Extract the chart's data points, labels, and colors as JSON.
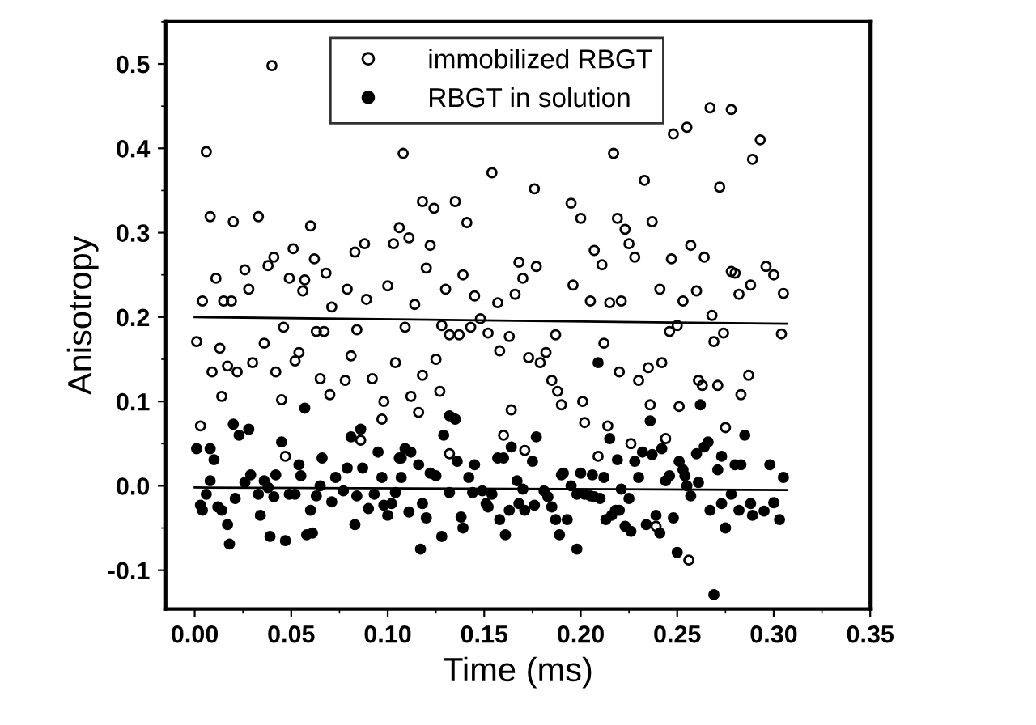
{
  "chart_data": {
    "type": "scatter",
    "xlabel": "Time (ms)",
    "ylabel": "Anisotropy",
    "xlim": [
      -0.015,
      0.35
    ],
    "ylim": [
      -0.146,
      0.55
    ],
    "xticks": [
      {
        "value": 0,
        "label": "0.00"
      },
      {
        "value": 0.05,
        "label": "0.05"
      },
      {
        "value": 0.1,
        "label": "0.10"
      },
      {
        "value": 0.15,
        "label": "0.15"
      },
      {
        "value": 0.2,
        "label": "0.20"
      },
      {
        "value": 0.25,
        "label": "0.25"
      },
      {
        "value": 0.3,
        "label": "0.30"
      },
      {
        "value": 0.35,
        "label": "0.35"
      }
    ],
    "yticks": [
      {
        "value": -0.1,
        "label": "-0.1"
      },
      {
        "value": 0,
        "label": "0.0"
      },
      {
        "value": 0.1,
        "label": "0.1"
      },
      {
        "value": 0.2,
        "label": "0.2"
      },
      {
        "value": 0.3,
        "label": "0.3"
      },
      {
        "value": 0.4,
        "label": "0.4"
      },
      {
        "value": 0.5,
        "label": "0.5"
      }
    ],
    "grid": false,
    "legend": "top",
    "marker": "circle",
    "series": [
      {
        "name": "immobilized RBGT",
        "color": "#000000",
        "x": [
          0.04,
          0.006,
          0.008,
          0.02,
          0.033,
          0.06,
          0.011,
          0.026,
          0.028,
          0.038,
          0.041,
          0.051,
          0.049,
          0.057,
          0.056,
          0.062,
          0.068,
          0.071,
          0.079,
          0.083,
          0.088,
          0.089,
          0.103,
          0.106,
          0.1,
          0.004,
          0.015,
          0.019,
          0.108,
          0.154,
          0.176,
          0.217,
          0.233,
          0.248,
          0.255,
          0.267,
          0.278,
          0.272,
          0.289,
          0.118,
          0.124,
          0.135,
          0.141,
          0.111,
          0.122,
          0.12,
          0.139,
          0.13,
          0.114,
          0.195,
          0.2,
          0.219,
          0.223,
          0.225,
          0.228,
          0.207,
          0.211,
          0.237,
          0.247,
          0.257,
          0.264,
          0.168,
          0.17,
          0.177,
          0.196,
          0.241,
          0.253,
          0.26,
          0.278,
          0.28,
          0.288,
          0.282,
          0.145,
          0.157,
          0.166,
          0.215,
          0.221,
          0.205,
          0.001,
          0.013,
          0.009,
          0.017,
          0.022,
          0.014,
          0.03,
          0.036,
          0.046,
          0.042,
          0.045,
          0.052,
          0.054,
          0.065,
          0.07,
          0.063,
          0.067,
          0.078,
          0.081,
          0.092,
          0.084,
          0.098,
          0.097,
          0.003,
          0.047,
          0.086,
          0.104,
          0.109,
          0.112,
          0.116,
          0.118,
          0.125,
          0.127,
          0.132,
          0.128,
          0.132,
          0.137,
          0.143,
          0.148,
          0.152,
          0.158,
          0.163,
          0.164,
          0.16,
          0.171,
          0.173,
          0.179,
          0.182,
          0.185,
          0.188,
          0.19,
          0.201,
          0.202,
          0.187,
          0.212,
          0.209,
          0.214,
          0.22,
          0.226,
          0.23,
          0.235,
          0.236,
          0.242,
          0.244,
          0.246,
          0.251,
          0.256,
          0.261,
          0.263,
          0.271,
          0.268,
          0.269,
          0.274,
          0.275,
          0.283,
          0.287,
          0.239,
          0.25,
          0.296,
          0.3,
          0.305,
          0.304,
          0.293
        ],
        "values": [
          0.498,
          0.396,
          0.319,
          0.313,
          0.319,
          0.308,
          0.246,
          0.256,
          0.233,
          0.261,
          0.271,
          0.281,
          0.246,
          0.244,
          0.231,
          0.269,
          0.252,
          0.212,
          0.233,
          0.277,
          0.287,
          0.221,
          0.287,
          0.306,
          0.237,
          0.219,
          0.219,
          0.219,
          0.394,
          0.371,
          0.352,
          0.394,
          0.362,
          0.417,
          0.425,
          0.448,
          0.446,
          0.354,
          0.387,
          0.337,
          0.329,
          0.337,
          0.312,
          0.294,
          0.285,
          0.258,
          0.25,
          0.233,
          0.215,
          0.335,
          0.317,
          0.317,
          0.304,
          0.287,
          0.271,
          0.279,
          0.262,
          0.313,
          0.269,
          0.285,
          0.271,
          0.265,
          0.246,
          0.26,
          0.238,
          0.233,
          0.219,
          0.231,
          0.254,
          0.252,
          0.238,
          0.227,
          0.225,
          0.217,
          0.227,
          0.217,
          0.219,
          0.219,
          0.171,
          0.163,
          0.135,
          0.142,
          0.135,
          0.106,
          0.146,
          0.169,
          0.188,
          0.135,
          0.102,
          0.148,
          0.158,
          0.127,
          0.108,
          0.183,
          0.183,
          0.125,
          0.154,
          0.127,
          0.185,
          0.1,
          0.079,
          0.071,
          0.035,
          0.054,
          0.146,
          0.188,
          0.106,
          0.087,
          0.131,
          0.15,
          0.112,
          0.038,
          0.19,
          0.179,
          0.179,
          0.188,
          0.198,
          0.181,
          0.16,
          0.177,
          0.09,
          0.06,
          0.042,
          0.152,
          0.146,
          0.158,
          0.125,
          0.112,
          0.096,
          0.1,
          0.075,
          0.179,
          0.169,
          0.035,
          0.071,
          0.135,
          0.05,
          0.125,
          0.14,
          0.096,
          0.146,
          0.056,
          0.183,
          0.094,
          -0.088,
          0.125,
          0.119,
          0.119,
          0.202,
          0.171,
          0.181,
          0.069,
          0.108,
          0.131,
          -0.048,
          0.19,
          0.26,
          0.25,
          0.228,
          0.18,
          0.41
        ]
      },
      {
        "name": "RBGT in solution",
        "color": "#000000",
        "x": [
          0.001,
          0.008,
          0.01,
          0.02,
          0.023,
          0.028,
          0.008,
          0.003,
          0.004,
          0.012,
          0.014,
          0.006,
          0.017,
          0.018,
          0.021,
          0.026,
          0.029,
          0.034,
          0.033,
          0.036,
          0.038,
          0.041,
          0.039,
          0.047,
          0.042,
          0.045,
          0.054,
          0.055,
          0.049,
          0.052,
          0.057,
          0.058,
          0.061,
          0.06,
          0.063,
          0.065,
          0.066,
          0.071,
          0.073,
          0.077,
          0.079,
          0.081,
          0.083,
          0.084,
          0.087,
          0.086,
          0.09,
          0.093,
          0.095,
          0.097,
          0.098,
          0.1,
          0.102,
          0.104,
          0.107,
          0.106,
          0.109,
          0.112,
          0.107,
          0.111,
          0.117,
          0.118,
          0.12,
          0.116,
          0.122,
          0.125,
          0.128,
          0.129,
          0.132,
          0.132,
          0.135,
          0.136,
          0.138,
          0.139,
          0.142,
          0.145,
          0.144,
          0.149,
          0.151,
          0.154,
          0.152,
          0.158,
          0.161,
          0.157,
          0.16,
          0.163,
          0.164,
          0.167,
          0.17,
          0.168,
          0.171,
          0.175,
          0.176,
          0.177,
          0.181,
          0.183,
          0.185,
          0.187,
          0.189,
          0.19,
          0.191,
          0.193,
          0.195,
          0.198,
          0.198,
          0.2,
          0.206,
          0.202,
          0.205,
          0.207,
          0.21,
          0.209,
          0.212,
          0.213,
          0.216,
          0.218,
          0.22,
          0.215,
          0.219,
          0.221,
          0.223,
          0.226,
          0.225,
          0.228,
          0.23,
          0.232,
          0.234,
          0.236,
          0.237,
          0.239,
          0.241,
          0.242,
          0.244,
          0.246,
          0.248,
          0.25,
          0.251,
          0.253,
          0.254,
          0.255,
          0.257,
          0.26,
          0.261,
          0.262,
          0.264,
          0.266,
          0.267,
          0.269,
          0.271,
          0.273,
          0.273,
          0.275,
          0.278,
          0.28,
          0.283,
          0.282,
          0.285,
          0.288,
          0.289,
          0.295,
          0.3,
          0.305,
          0.303,
          0.298
        ],
        "values": [
          0.044,
          0.044,
          0.031,
          0.073,
          0.06,
          0.067,
          0.006,
          -0.023,
          -0.029,
          -0.025,
          -0.029,
          -0.01,
          -0.046,
          -0.069,
          -0.015,
          0.004,
          0.013,
          -0.035,
          -0.01,
          0.006,
          -0.002,
          -0.013,
          -0.06,
          -0.065,
          0.013,
          0.052,
          0.025,
          0.012,
          -0.01,
          -0.01,
          0.092,
          -0.058,
          -0.056,
          -0.029,
          -0.012,
          0.0,
          0.033,
          -0.019,
          0.01,
          -0.006,
          0.021,
          0.058,
          -0.046,
          -0.012,
          0.021,
          0.067,
          -0.027,
          -0.01,
          0.04,
          0.01,
          -0.023,
          -0.035,
          -0.021,
          -0.008,
          0.033,
          0.033,
          0.044,
          0.04,
          0.01,
          -0.031,
          -0.075,
          -0.021,
          -0.038,
          0.025,
          0.015,
          0.012,
          -0.06,
          0.06,
          -0.008,
          0.083,
          0.079,
          0.029,
          -0.037,
          -0.05,
          0.01,
          0.025,
          -0.008,
          -0.006,
          -0.021,
          -0.01,
          -0.025,
          -0.04,
          -0.058,
          0.033,
          0.033,
          -0.029,
          0.046,
          0.006,
          -0.004,
          -0.021,
          -0.029,
          0.029,
          -0.023,
          0.058,
          -0.006,
          -0.013,
          -0.025,
          -0.04,
          -0.058,
          0.013,
          0.015,
          -0.04,
          0.0,
          -0.01,
          -0.075,
          0.015,
          0.013,
          -0.01,
          -0.012,
          -0.013,
          -0.015,
          0.146,
          0.01,
          -0.04,
          -0.035,
          -0.029,
          -0.029,
          0.056,
          0.031,
          -0.004,
          -0.048,
          -0.054,
          -0.015,
          0.029,
          0.01,
          0.04,
          -0.046,
          0.077,
          0.037,
          -0.035,
          -0.056,
          0.044,
          0.006,
          0.012,
          -0.038,
          -0.079,
          0.029,
          0.019,
          0.012,
          0.0,
          -0.012,
          0.038,
          0.004,
          0.096,
          0.046,
          0.052,
          -0.029,
          -0.129,
          0.019,
          -0.021,
          0.035,
          -0.05,
          -0.01,
          0.025,
          0.025,
          -0.029,
          0.06,
          -0.021,
          -0.035,
          -0.03,
          -0.02,
          0.01,
          -0.04,
          0.025
        ]
      },
      {
        "type": "line",
        "color": "#000000",
        "marker": "none",
        "x": [
          0.0,
          0.307
        ],
        "values": [
          0.2,
          0.192
        ]
      },
      {
        "type": "line",
        "color": "#000000",
        "marker": "none",
        "x": [
          0.0,
          0.307
        ],
        "values": [
          -0.002,
          -0.005
        ]
      }
    ]
  }
}
